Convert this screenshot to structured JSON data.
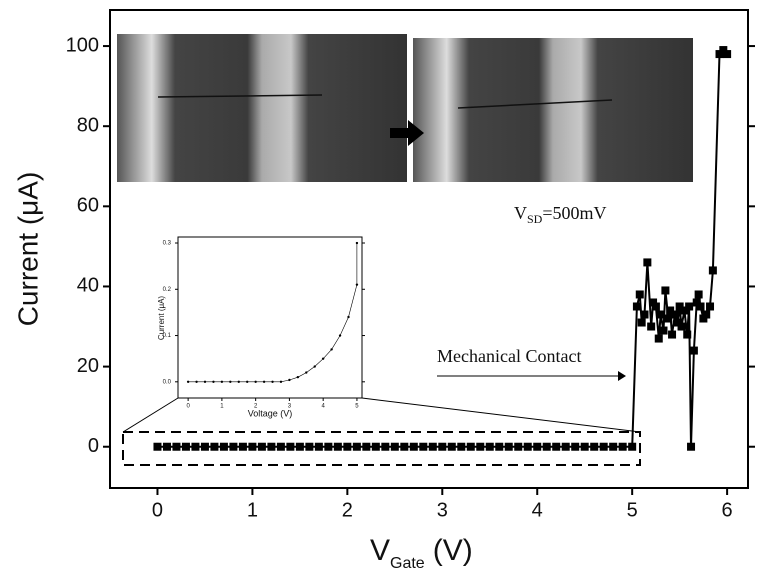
{
  "chart_data": [
    {
      "type": "line",
      "markers": "square",
      "y_label": "Current (μA)",
      "x_label": {
        "main": "V",
        "sub": "Gate",
        "unit": "(V)"
      },
      "annotation_vsd": {
        "main": "V",
        "sub": "SD",
        "rest": "=500mV"
      },
      "annotation_contact": "Mechanical Contact",
      "xlim": [
        -0.5,
        6.22
      ],
      "ylim": [
        -10.3,
        109
      ],
      "xticks": [
        0,
        1,
        2,
        3,
        4,
        5,
        6
      ],
      "yticks": [
        0,
        20,
        40,
        60,
        80,
        100
      ],
      "series": [
        {
          "color": "#000000",
          "x": [
            0,
            0.1,
            0.2,
            0.3,
            0.4,
            0.5,
            0.6,
            0.7,
            0.8,
            0.9,
            1,
            1.1,
            1.2,
            1.3,
            1.4,
            1.5,
            1.6,
            1.7,
            1.8,
            1.9,
            2,
            2.1,
            2.2,
            2.3,
            2.4,
            2.5,
            2.6,
            2.7,
            2.8,
            2.9,
            3,
            3.1,
            3.2,
            3.3,
            3.4,
            3.5,
            3.6,
            3.7,
            3.8,
            3.9,
            4,
            4.1,
            4.2,
            4.3,
            4.4,
            4.5,
            4.6,
            4.7,
            4.8,
            4.9,
            5,
            5.05,
            5.08,
            5.1,
            5.13,
            5.16,
            5.2,
            5.22,
            5.25,
            5.28,
            5.3,
            5.33,
            5.35,
            5.38,
            5.4,
            5.42,
            5.45,
            5.48,
            5.5,
            5.52,
            5.55,
            5.58,
            5.6,
            5.62,
            5.65,
            5.68,
            5.7,
            5.72,
            5.75,
            5.78,
            5.82,
            5.85,
            5.92,
            5.96,
            6
          ],
          "values": [
            0,
            0,
            0,
            0,
            0,
            0,
            0,
            0,
            0,
            0,
            0,
            0,
            0,
            0,
            0,
            0,
            0,
            0,
            0,
            0,
            0,
            0,
            0,
            0,
            0,
            0,
            0,
            0,
            0,
            0,
            0,
            0,
            0,
            0,
            0,
            0,
            0,
            0,
            0,
            0,
            0,
            0,
            0,
            0,
            0,
            0,
            0,
            0,
            0,
            0,
            0,
            35,
            38,
            31,
            33,
            46,
            30,
            36,
            35,
            27,
            33,
            29,
            39,
            32,
            34,
            28,
            33,
            31,
            35,
            30,
            34,
            28,
            35,
            0,
            24,
            36,
            38,
            35,
            32,
            33,
            35,
            44,
            98,
            99,
            98
          ]
        }
      ]
    },
    {
      "type": "line",
      "markers": "dot",
      "y_label": "Current (μA)",
      "x_label": "Voltage (V)",
      "xlim": [
        -0.3,
        5.15
      ],
      "ylim": [
        -0.035,
        0.313
      ],
      "xticks": [
        0,
        1,
        2,
        3,
        4,
        5
      ],
      "yticks": [
        {
          "value": 0,
          "label": "0.0"
        },
        0.1,
        0.2,
        0.3
      ],
      "series": [
        {
          "color": "#000000",
          "x": [
            0,
            0.25,
            0.5,
            0.75,
            1,
            1.25,
            1.5,
            1.75,
            2,
            2.25,
            2.5,
            2.75,
            3,
            3.25,
            3.5,
            3.75,
            4,
            4.25,
            4.5,
            4.75,
            5,
            5
          ],
          "values": [
            0,
            0,
            0,
            0,
            0,
            0,
            0,
            0,
            0,
            0,
            0,
            0,
            0.004,
            0.01,
            0.02,
            0.033,
            0.05,
            0.07,
            0.1,
            0.14,
            0.21,
            0.3
          ]
        }
      ]
    }
  ]
}
